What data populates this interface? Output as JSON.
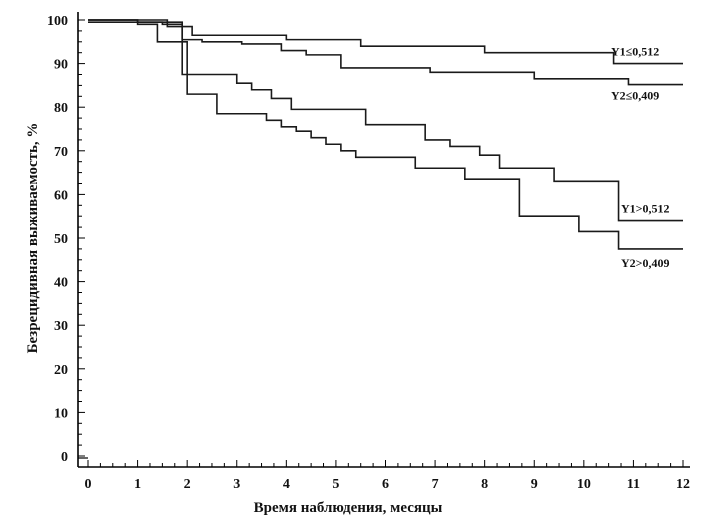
{
  "chart_data": {
    "type": "line",
    "step": true,
    "title": "",
    "xlabel": "Время наблюдения, месяцы",
    "ylabel": "Безрецидивная выживаемость, %",
    "xlim": [
      0,
      12
    ],
    "ylim": [
      0,
      100
    ],
    "x_ticks": [
      0,
      1,
      2,
      3,
      4,
      5,
      6,
      7,
      8,
      9,
      10,
      11,
      12
    ],
    "y_ticks": [
      0,
      10,
      20,
      30,
      40,
      50,
      60,
      70,
      80,
      90,
      100
    ],
    "grid": false,
    "legend": "inline labels at right",
    "series": [
      {
        "name": "Y1≤0,512",
        "x": [
          0,
          1.6,
          2.1,
          4.0,
          5.5,
          8.0,
          10.6,
          12
        ],
        "y": [
          100,
          98.5,
          96.5,
          95.5,
          94,
          92.5,
          90,
          90
        ]
      },
      {
        "name": "Y2≤0,409",
        "x": [
          0,
          1.5,
          1.9,
          2.3,
          3.1,
          3.9,
          4.4,
          5.1,
          6.9,
          9.0,
          10.9,
          12
        ],
        "y": [
          99.5,
          99,
          95.5,
          95,
          94.5,
          93,
          92,
          89,
          88,
          86.5,
          85.2,
          85.2
        ]
      },
      {
        "name": "Y1>0,512",
        "x": [
          0,
          1.0,
          1.9,
          3.0,
          3.3,
          3.7,
          4.1,
          5.6,
          6.8,
          7.3,
          7.9,
          8.3,
          9.4,
          10.7,
          12
        ],
        "y": [
          100,
          99.5,
          87.5,
          85.5,
          84,
          82,
          79.5,
          76,
          72.5,
          71,
          69,
          66,
          63,
          54,
          54
        ]
      },
      {
        "name": "Y2>0,409",
        "x": [
          0,
          1.0,
          1.4,
          2.0,
          2.6,
          3.1,
          3.6,
          3.9,
          4.2,
          4.5,
          4.8,
          5.1,
          5.4,
          6.6,
          7.6,
          8.7,
          9.9,
          10.7,
          12
        ],
        "y": [
          100,
          99,
          95,
          83,
          78.5,
          78.5,
          77,
          75.5,
          74.5,
          73,
          71.5,
          70,
          68.5,
          66,
          63.5,
          55,
          51.5,
          47.5,
          47.5
        ]
      }
    ]
  }
}
